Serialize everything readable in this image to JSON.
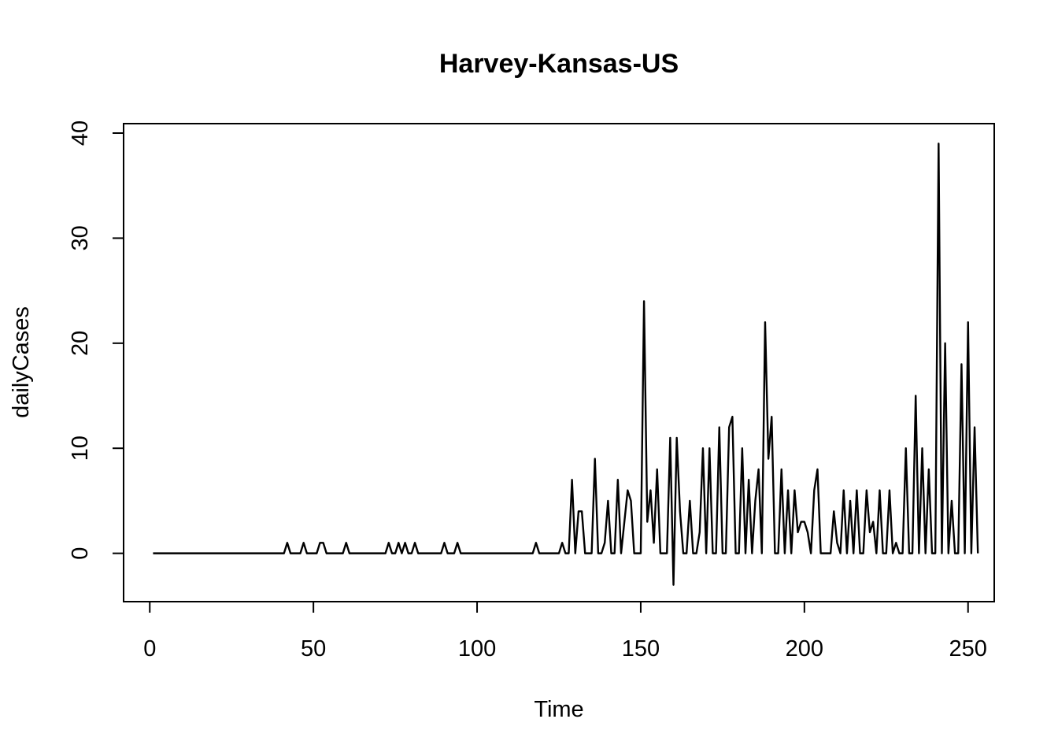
{
  "chart_data": {
    "type": "line",
    "title": "Harvey-Kansas-US",
    "xlabel": "Time",
    "ylabel": "dailyCases",
    "xlim": [
      -8,
      258
    ],
    "ylim": [
      -4.6,
      40.9
    ],
    "xticks": [
      0,
      50,
      100,
      150,
      200,
      250
    ],
    "yticks": [
      0,
      10,
      20,
      30,
      40
    ],
    "grid": false,
    "legend": "none",
    "series": [
      {
        "x_start": 1,
        "values": [
          0,
          0,
          0,
          0,
          0,
          0,
          0,
          0,
          0,
          0,
          0,
          0,
          0,
          0,
          0,
          0,
          0,
          0,
          0,
          0,
          0,
          0,
          0,
          0,
          0,
          0,
          0,
          0,
          0,
          0,
          0,
          0,
          0,
          0,
          0,
          0,
          0,
          0,
          0,
          0,
          0,
          1,
          0,
          0,
          0,
          0,
          1,
          0,
          0,
          0,
          0,
          1,
          1,
          0,
          0,
          0,
          0,
          0,
          0,
          1,
          0,
          0,
          0,
          0,
          0,
          0,
          0,
          0,
          0,
          0,
          0,
          0,
          1,
          0,
          0,
          1,
          0,
          1,
          0,
          0,
          1,
          0,
          0,
          0,
          0,
          0,
          0,
          0,
          0,
          1,
          0,
          0,
          0,
          1,
          0,
          0,
          0,
          0,
          0,
          0,
          0,
          0,
          0,
          0,
          0,
          0,
          0,
          0,
          0,
          0,
          0,
          0,
          0,
          0,
          0,
          0,
          0,
          1,
          0,
          0,
          0,
          0,
          0,
          0,
          0,
          1,
          0,
          0,
          7,
          0,
          4,
          4,
          0,
          0,
          0,
          9,
          0,
          0,
          1,
          5,
          0,
          0,
          7,
          0,
          3,
          6,
          5,
          0,
          0,
          0,
          24,
          3,
          6,
          1,
          8,
          0,
          0,
          0,
          11,
          -3,
          11,
          4,
          0,
          0,
          5,
          0,
          0,
          2,
          10,
          0,
          10,
          0,
          0,
          12,
          0,
          0,
          12,
          13,
          0,
          0,
          10,
          0,
          7,
          0,
          5,
          8,
          0,
          22,
          9,
          13,
          0,
          0,
          8,
          0,
          6,
          0,
          6,
          2,
          3,
          3,
          2,
          0,
          6,
          8,
          0,
          0,
          0,
          0,
          4,
          1,
          0,
          6,
          0,
          5,
          0,
          6,
          0,
          0,
          6,
          2,
          3,
          0,
          6,
          0,
          0,
          6,
          0,
          1,
          0,
          0,
          10,
          0,
          0,
          15,
          0,
          10,
          0,
          8,
          0,
          0,
          39,
          0,
          20,
          0,
          5,
          0,
          0,
          18,
          0,
          22,
          0,
          12,
          0
        ]
      }
    ]
  }
}
